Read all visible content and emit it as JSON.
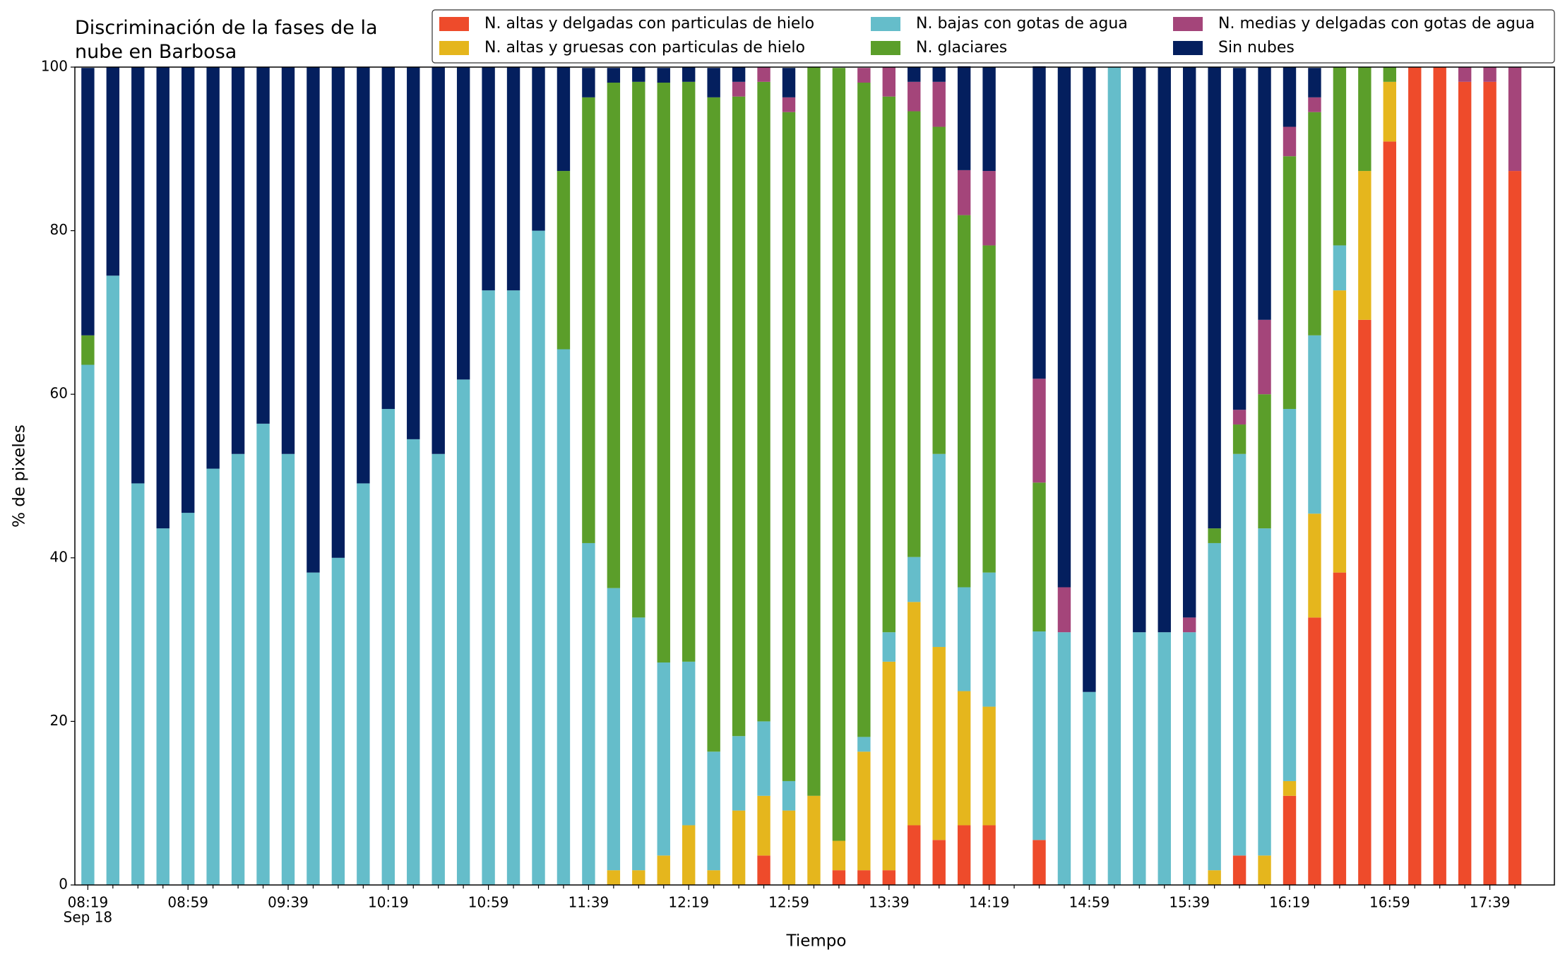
{
  "chart_data": {
    "type": "stacked_bar",
    "title": "Discriminación de la fases de la\nnube en Barbosa",
    "x_label": "Tiempo",
    "y_label": "% de pixeles",
    "date_label": "Sep 18",
    "legend_loc": "upper right",
    "grid": false,
    "ylim": [
      0,
      100
    ],
    "yticks": [
      0,
      20,
      40,
      60,
      80,
      100
    ],
    "categories": [
      "08:19",
      null,
      null,
      null,
      "08:59",
      null,
      null,
      null,
      "09:39",
      null,
      null,
      null,
      "10:19",
      null,
      null,
      null,
      "10:59",
      null,
      null,
      null,
      "11:39",
      null,
      null,
      null,
      "12:19",
      null,
      null,
      null,
      "12:59",
      null,
      null,
      null,
      "13:39",
      null,
      null,
      null,
      "14:19",
      null,
      null,
      null,
      "14:59",
      null,
      null,
      null,
      "15:39",
      null,
      null,
      null,
      "16:19",
      null,
      null,
      null,
      "16:59",
      null,
      null,
      null,
      "17:39",
      null
    ],
    "series": [
      {
        "name": "N. altas y delgadas con particulas de hielo",
        "color": "#ee4b2b",
        "values": [
          0,
          0,
          0,
          0,
          0,
          0,
          0,
          0,
          0,
          0,
          0,
          0,
          0,
          0,
          0,
          0,
          0,
          0,
          0,
          0,
          0,
          0,
          0,
          0,
          0,
          0,
          0,
          3.6,
          0,
          0,
          1.8,
          1.8,
          1.8,
          7.3,
          5.5,
          7.3,
          7.3,
          null,
          5.5,
          0,
          0,
          0,
          0,
          0,
          0,
          0,
          3.6,
          0,
          10.9,
          32.7,
          38.2,
          69.1,
          90.9,
          100,
          100,
          98.2,
          98.2,
          87.3
        ]
      },
      {
        "name": "N. altas y gruesas con particulas de hielo",
        "color": "#e5b61d",
        "values": [
          0,
          0,
          0,
          0,
          0,
          0,
          0,
          0,
          0,
          0,
          0,
          0,
          0,
          0,
          0,
          0,
          0,
          0,
          0,
          0,
          0,
          1.8,
          1.8,
          3.6,
          7.3,
          1.8,
          9.1,
          7.3,
          9.1,
          10.9,
          3.6,
          14.5,
          25.5,
          27.3,
          23.6,
          16.4,
          14.5,
          null,
          0,
          0,
          0,
          0,
          0,
          0,
          0,
          1.8,
          0,
          3.6,
          1.8,
          12.7,
          34.5,
          18.2,
          7.3,
          0,
          0,
          0,
          0,
          0
        ]
      },
      {
        "name": "N. bajas con gotas de agua",
        "color": "#65bdca",
        "values": [
          63.6,
          74.5,
          49.1,
          43.6,
          45.5,
          50.9,
          52.7,
          56.4,
          52.7,
          38.2,
          40.0,
          49.1,
          58.2,
          54.5,
          52.7,
          61.8,
          72.7,
          72.7,
          80.0,
          65.5,
          41.8,
          34.5,
          30.9,
          23.6,
          20.0,
          14.5,
          9.1,
          9.1,
          3.6,
          0,
          0,
          1.8,
          3.6,
          5.5,
          23.6,
          12.7,
          16.4,
          null,
          25.5,
          30.9,
          23.6,
          100,
          30.9,
          30.9,
          30.9,
          40.0,
          49.1,
          40.0,
          45.5,
          21.8,
          5.5,
          0,
          0,
          0,
          0,
          0,
          0,
          0
        ]
      },
      {
        "name": "N. glaciares",
        "color": "#5b9e2a",
        "values": [
          3.6,
          0,
          0,
          0,
          0,
          0,
          0,
          0,
          0,
          0,
          0,
          0,
          0,
          0,
          0,
          0,
          0,
          0,
          0,
          21.8,
          54.5,
          61.8,
          65.5,
          70.9,
          70.9,
          80.0,
          78.2,
          78.2,
          81.8,
          89.1,
          94.5,
          80.0,
          65.5,
          54.5,
          40.0,
          45.5,
          40.0,
          null,
          18.2,
          0,
          0,
          0,
          0,
          0,
          0,
          1.8,
          3.6,
          16.4,
          30.9,
          27.3,
          21.8,
          12.7,
          1.8,
          0,
          0,
          0,
          0,
          0
        ]
      },
      {
        "name": "N. medias y delgadas con gotas de agua",
        "color": "#a4457a",
        "values": [
          0,
          0,
          0,
          0,
          0,
          0,
          0,
          0,
          0,
          0,
          0,
          0,
          0,
          0,
          0,
          0,
          0,
          0,
          0,
          0,
          0,
          0,
          0,
          0,
          0,
          0,
          1.8,
          1.8,
          1.8,
          0,
          0,
          1.8,
          3.6,
          3.6,
          5.5,
          5.5,
          9.1,
          null,
          12.7,
          5.5,
          0,
          0,
          0,
          0,
          1.8,
          0,
          1.8,
          9.1,
          3.6,
          1.8,
          0,
          0,
          0,
          0,
          0,
          1.8,
          1.8,
          12.7
        ]
      },
      {
        "name": "Sin nubes",
        "color": "#041f5e",
        "values": [
          32.7,
          25.5,
          50.9,
          56.4,
          54.5,
          49.1,
          47.3,
          43.6,
          47.3,
          61.8,
          60.0,
          50.9,
          41.8,
          45.5,
          47.3,
          38.2,
          27.3,
          27.3,
          20.0,
          12.7,
          3.6,
          1.8,
          1.8,
          1.8,
          1.8,
          3.6,
          1.8,
          0,
          3.6,
          0,
          0,
          0,
          0,
          1.8,
          1.8,
          12.7,
          12.7,
          null,
          38.2,
          63.6,
          76.4,
          0,
          69.1,
          69.1,
          67.3,
          56.4,
          41.8,
          30.9,
          7.3,
          3.6,
          0,
          0,
          0,
          0,
          0,
          0,
          0,
          0
        ]
      }
    ]
  }
}
